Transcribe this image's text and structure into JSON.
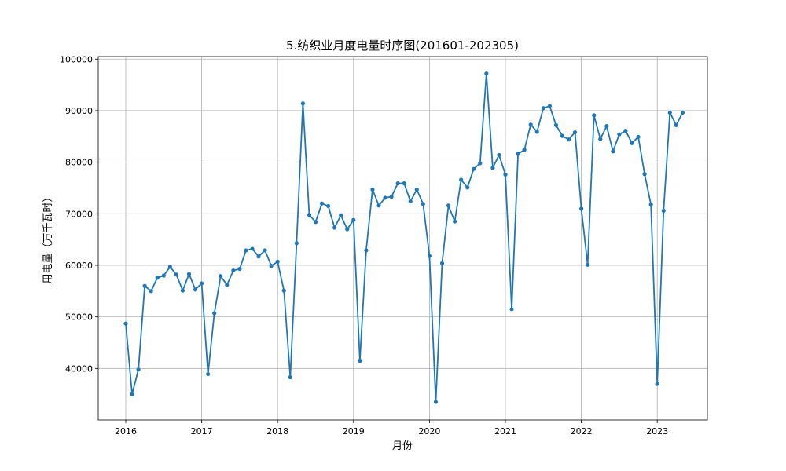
{
  "chart_data": {
    "type": "line",
    "title": "5.纺织业月度电量时序图(201601-202305)",
    "xlabel": "月份",
    "ylabel": "用电量（万千瓦时）",
    "x_ticks": [
      "2016",
      "2017",
      "2018",
      "2019",
      "2020",
      "2021",
      "2022",
      "2023"
    ],
    "y_ticks": [
      "40000",
      "50000",
      "60000",
      "70000",
      "80000",
      "90000",
      "100000"
    ],
    "ylim": [
      30000,
      100500
    ],
    "grid": true,
    "color": "#1f77b4",
    "x": [
      "2016-01",
      "2016-02",
      "2016-03",
      "2016-04",
      "2016-05",
      "2016-06",
      "2016-07",
      "2016-08",
      "2016-09",
      "2016-10",
      "2016-11",
      "2016-12",
      "2017-01",
      "2017-02",
      "2017-03",
      "2017-04",
      "2017-05",
      "2017-06",
      "2017-07",
      "2017-08",
      "2017-09",
      "2017-10",
      "2017-11",
      "2017-12",
      "2018-01",
      "2018-02",
      "2018-03",
      "2018-04",
      "2018-05",
      "2018-06",
      "2018-07",
      "2018-08",
      "2018-09",
      "2018-10",
      "2018-11",
      "2018-12",
      "2019-01",
      "2019-02",
      "2019-03",
      "2019-04",
      "2019-05",
      "2019-06",
      "2019-07",
      "2019-08",
      "2019-09",
      "2019-10",
      "2019-11",
      "2019-12",
      "2020-01",
      "2020-02",
      "2020-03",
      "2020-04",
      "2020-05",
      "2020-06",
      "2020-07",
      "2020-08",
      "2020-09",
      "2020-10",
      "2020-11",
      "2020-12",
      "2021-01",
      "2021-02",
      "2021-03",
      "2021-04",
      "2021-05",
      "2021-06",
      "2021-07",
      "2021-08",
      "2021-09",
      "2021-10",
      "2021-11",
      "2021-12",
      "2022-01",
      "2022-02",
      "2022-03",
      "2022-04",
      "2022-05",
      "2022-06",
      "2022-07",
      "2022-08",
      "2022-09",
      "2022-10",
      "2022-11",
      "2022-12",
      "2023-01",
      "2023-02",
      "2023-03",
      "2023-04",
      "2023-05"
    ],
    "series": [
      {
        "values": [
          48700,
          35000,
          39800,
          56000,
          55000,
          57600,
          58000,
          59700,
          58200,
          55100,
          58300,
          55300,
          56500,
          38900,
          50700,
          57900,
          56200,
          59000,
          59300,
          62900,
          63200,
          61700,
          62900,
          59900,
          60700,
          55100,
          38300,
          64300,
          91400,
          69800,
          68400,
          72000,
          71500,
          67300,
          69700,
          67000,
          68800,
          41500,
          62900,
          74700,
          71600,
          73100,
          73300,
          75900,
          75900,
          72400,
          74700,
          71900,
          61800,
          33500,
          60400,
          71600,
          68500,
          76600,
          75100,
          78700,
          79800,
          97200,
          78900,
          81400,
          77600,
          51500,
          81600,
          82400,
          87300,
          85900,
          90500,
          90900,
          87200,
          85100,
          84400,
          85800,
          71000,
          60100,
          89100,
          84500,
          87000,
          82100,
          85400,
          86100,
          83700,
          84900,
          77700,
          71800,
          37000,
          70600,
          89600,
          87200,
          89600
        ]
      }
    ]
  }
}
